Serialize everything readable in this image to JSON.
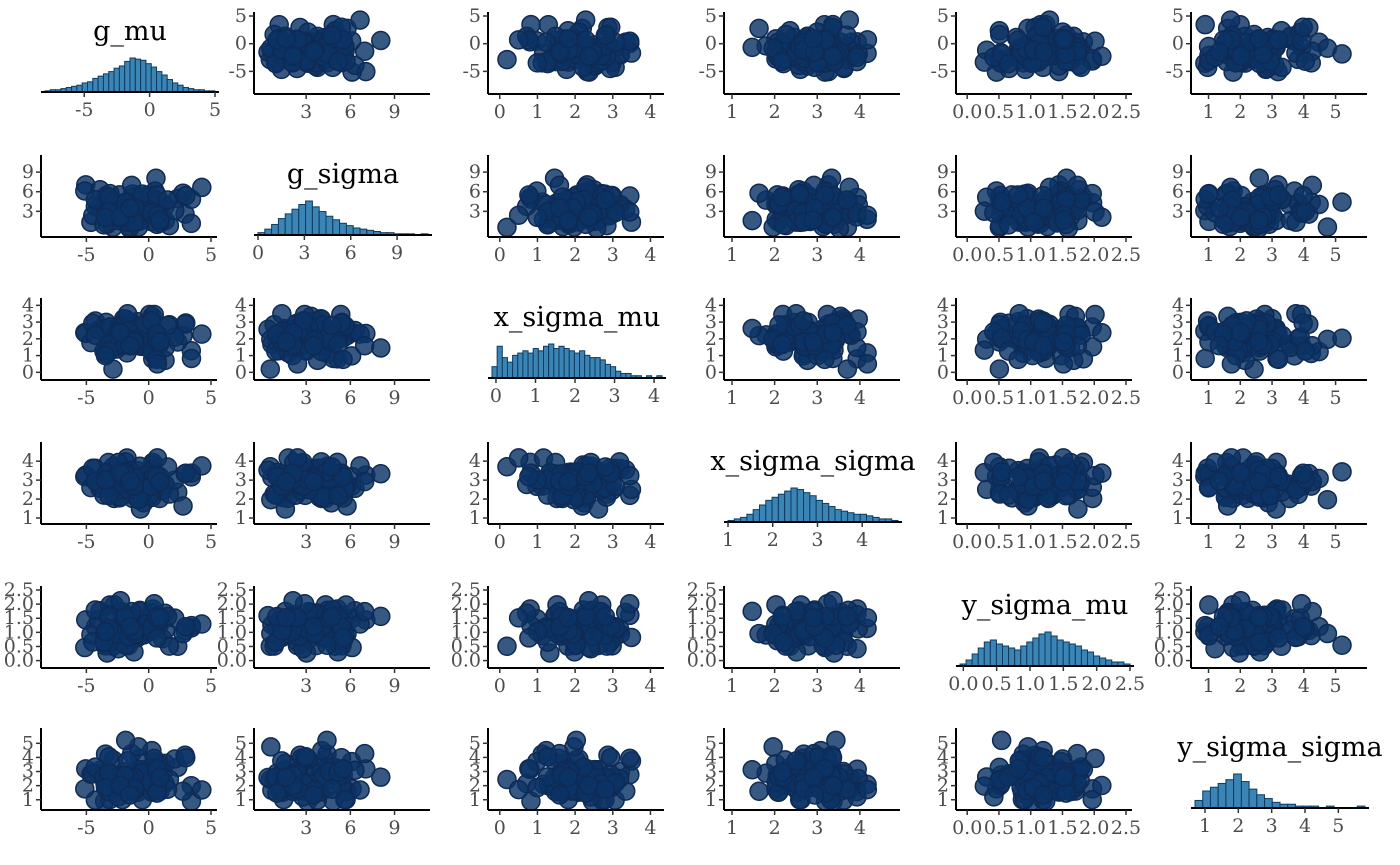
{
  "colors": {
    "point_fill": "#0b3365",
    "point_stroke": "#0e2a55",
    "hist_fill": "#3a85b5",
    "hist_stroke": "#0f3b5e",
    "axis": "#000000",
    "tick_label": "#4d4d4d"
  },
  "chart_data": {
    "type": "scatter",
    "layout": "pairs-matrix",
    "variables": [
      {
        "name": "g_mu",
        "range": [
          -8,
          5
        ],
        "ticks": [
          "-5",
          "0",
          "5"
        ],
        "tick_values": [
          -5,
          0,
          5
        ],
        "hist_counts": [
          1,
          2,
          2,
          3,
          4,
          5,
          6,
          8,
          9,
          12,
          14,
          16,
          18,
          21,
          23,
          27,
          30,
          29,
          28,
          25,
          22,
          18,
          15,
          11,
          8,
          6,
          4,
          3,
          2,
          2,
          1,
          1
        ]
      },
      {
        "name": "g_sigma",
        "range": [
          0,
          11
        ],
        "ticks_diag": [
          "0",
          "3",
          "6",
          "9"
        ],
        "tick_values_diag": [
          0,
          3,
          6,
          9
        ],
        "ticks_x": [
          "3",
          "6",
          "9"
        ],
        "tick_values_x": [
          3,
          6,
          9
        ],
        "ticks_y": [
          "3",
          "6",
          "9"
        ],
        "tick_values_y": [
          3,
          6,
          9
        ],
        "hist_counts": [
          2,
          5,
          9,
          14,
          18,
          22,
          26,
          29,
          24,
          20,
          16,
          13,
          10,
          8,
          6,
          5,
          4,
          3,
          2,
          2,
          1,
          1,
          1,
          0,
          1
        ]
      },
      {
        "name": "x_sigma_mu",
        "range": [
          -0.1,
          4.2
        ],
        "ticks": [
          "0",
          "1",
          "2",
          "3",
          "4"
        ],
        "tick_values": [
          0,
          1,
          2,
          3,
          4
        ],
        "hist_counts": [
          5,
          14,
          9,
          7,
          10,
          11,
          12,
          11,
          13,
          12,
          14,
          15,
          13,
          14,
          13,
          12,
          11,
          12,
          10,
          9,
          9,
          8,
          6,
          5,
          3,
          2,
          2,
          1,
          1,
          0,
          1,
          0,
          1
        ]
      },
      {
        "name": "x_sigma_sigma",
        "range": [
          1,
          4.8
        ],
        "ticks": [
          "1",
          "2",
          "3",
          "4"
        ],
        "tick_values": [
          1,
          2,
          3,
          4
        ],
        "hist_counts": [
          1,
          2,
          3,
          5,
          8,
          11,
          14,
          16,
          18,
          20,
          22,
          21,
          19,
          17,
          14,
          12,
          10,
          8,
          7,
          6,
          5,
          5,
          4,
          3,
          2,
          2,
          1
        ]
      },
      {
        "name": "y_sigma_mu",
        "range": [
          -0.05,
          2.5
        ],
        "ticks": [
          "0.0",
          "0.5",
          "1.0",
          "1.5",
          "2.0",
          "2.5"
        ],
        "tick_values": [
          0,
          0.5,
          1,
          1.5,
          2,
          2.5
        ],
        "hist_counts": [
          1,
          3,
          6,
          9,
          12,
          13,
          11,
          10,
          9,
          8,
          10,
          12,
          14,
          16,
          17,
          15,
          13,
          12,
          11,
          10,
          8,
          7,
          5,
          4,
          3,
          2,
          2,
          1
        ]
      },
      {
        "name": "y_sigma_sigma",
        "range": [
          0.7,
          5.8
        ],
        "ticks": [
          "1",
          "2",
          "3",
          "4",
          "5"
        ],
        "tick_values": [
          1,
          2,
          3,
          4,
          5
        ],
        "hist_counts": [
          4,
          9,
          11,
          13,
          15,
          18,
          14,
          10,
          7,
          5,
          3,
          2,
          2,
          1,
          1,
          1,
          0,
          1,
          0,
          0,
          0,
          1
        ]
      }
    ],
    "point_count": 100,
    "grid": false,
    "legend": "none"
  }
}
